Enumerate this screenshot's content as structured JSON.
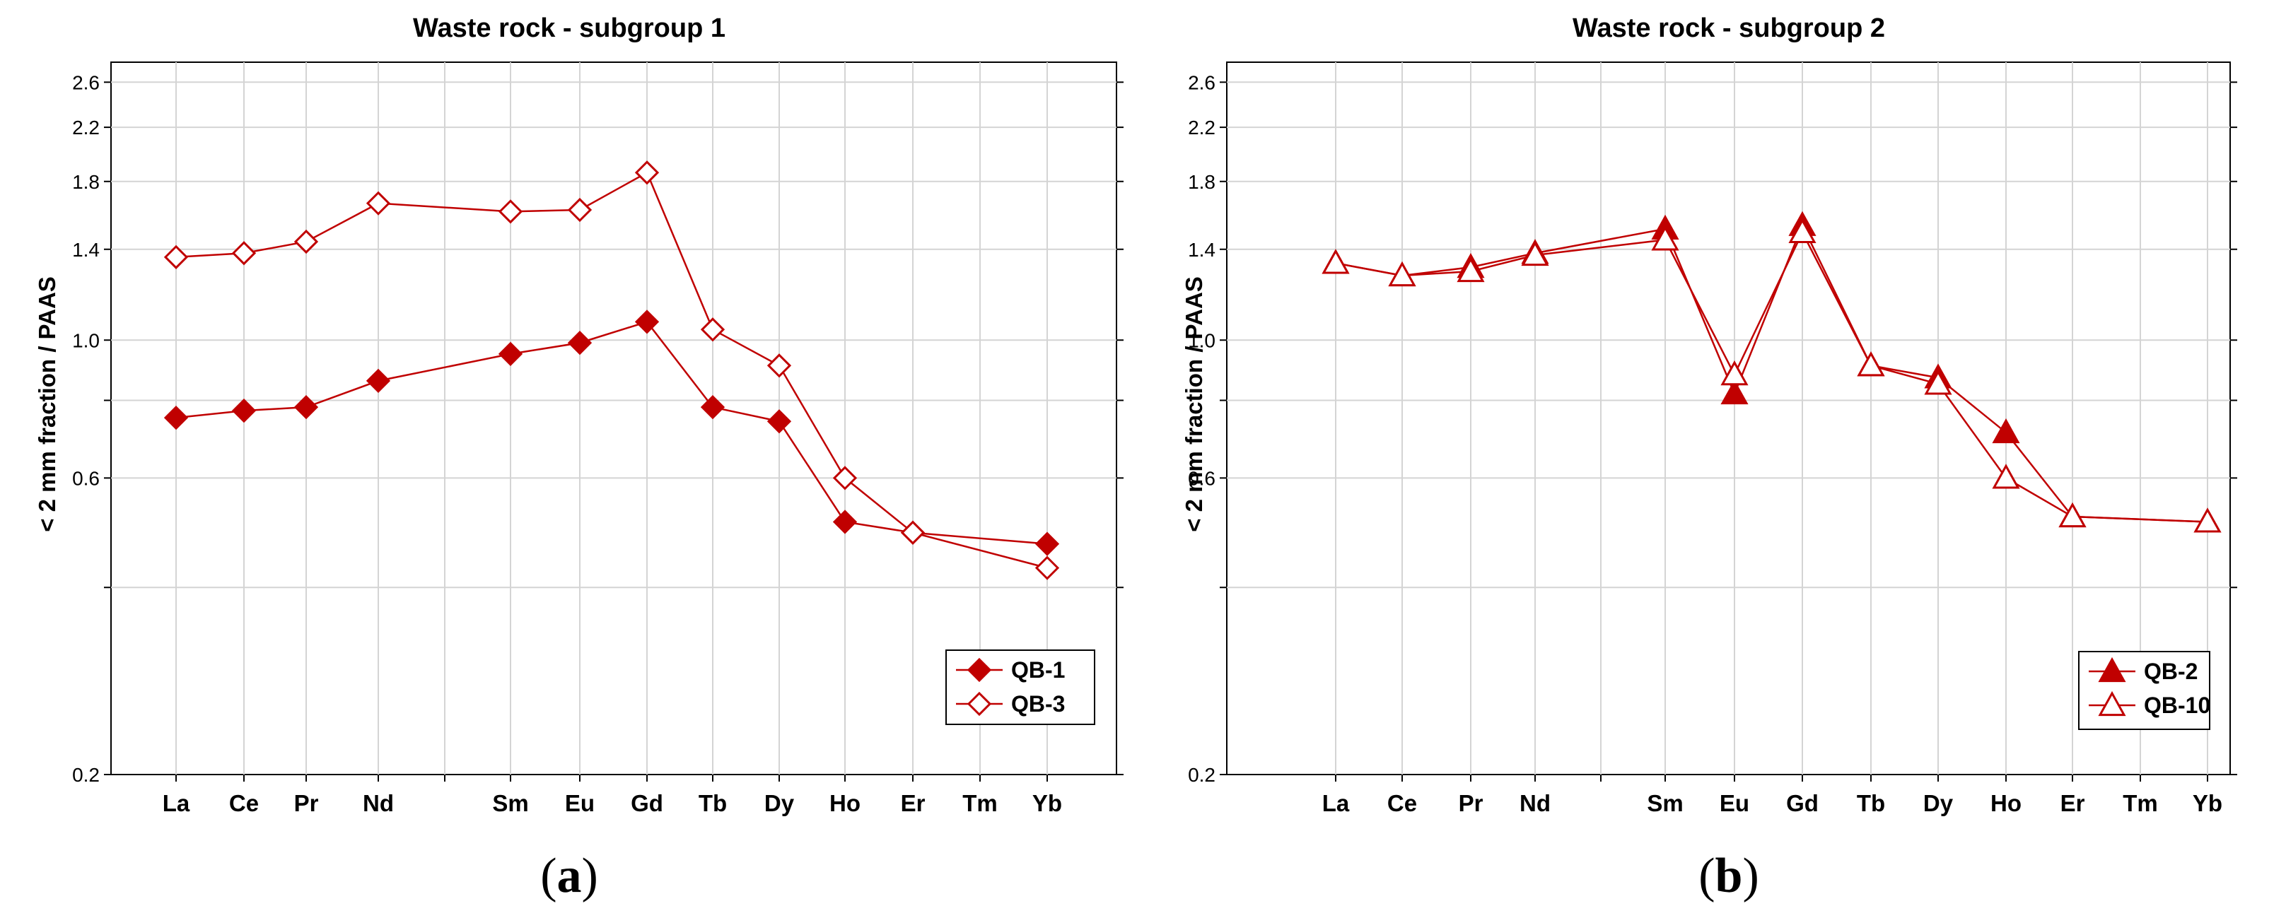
{
  "chart_data": [
    {
      "type": "line",
      "title": "Waste rock - subgroup 1",
      "ylabel": "< 2 mm fraction / PAAS",
      "xlabel": "",
      "yscale": "log",
      "ylim": [
        0.2,
        2.8
      ],
      "yticks": [
        "0.2",
        "0.6",
        "1.0",
        "1.4",
        "1.8",
        "2.2",
        "2.6"
      ],
      "categories": [
        "La",
        "Ce",
        "Pr",
        "Nd",
        "Sm",
        "Eu",
        "Gd",
        "Tb",
        "Dy",
        "Ho",
        "Er",
        "Tm",
        "Yb"
      ],
      "series": [
        {
          "name": "QB-1",
          "marker": "diamond-filled",
          "color": "#c00000",
          "values": [
            0.75,
            0.77,
            0.78,
            0.86,
            0.95,
            0.99,
            1.07,
            0.78,
            0.74,
            0.51,
            0.49,
            null,
            0.47
          ]
        },
        {
          "name": "QB-3",
          "marker": "diamond-open",
          "color": "#c00000",
          "values": [
            1.36,
            1.38,
            1.44,
            1.66,
            1.61,
            1.62,
            1.86,
            1.04,
            0.91,
            0.6,
            0.49,
            null,
            0.43
          ]
        }
      ],
      "legend_position": "bottom-right",
      "caption": "a"
    },
    {
      "type": "line",
      "title": "Waste rock - subgroup 2",
      "ylabel": "< 2 mm fraction / PAAS",
      "xlabel": "",
      "yscale": "log",
      "ylim": [
        0.2,
        2.8
      ],
      "yticks": [
        "0.2",
        "0.6",
        "1.0",
        "1.4",
        "1.8",
        "2.2",
        "2.6"
      ],
      "categories": [
        "La",
        "Ce",
        "Pr",
        "Nd",
        "Sm",
        "Eu",
        "Gd",
        "Tb",
        "Dy",
        "Ho",
        "Er",
        "Tm",
        "Yb"
      ],
      "series": [
        {
          "name": "QB-2",
          "marker": "triangle-filled",
          "color": "#c00000",
          "values": [
            1.33,
            1.27,
            1.31,
            1.38,
            1.51,
            0.82,
            1.53,
            0.91,
            0.87,
            0.71,
            0.52,
            null,
            0.51
          ]
        },
        {
          "name": "QB-10",
          "marker": "triangle-open",
          "color": "#c00000",
          "values": [
            1.33,
            1.27,
            1.29,
            1.37,
            1.45,
            0.88,
            1.49,
            0.91,
            0.85,
            0.6,
            0.52,
            null,
            0.51
          ]
        }
      ],
      "legend_position": "bottom-right",
      "caption": "b"
    }
  ]
}
